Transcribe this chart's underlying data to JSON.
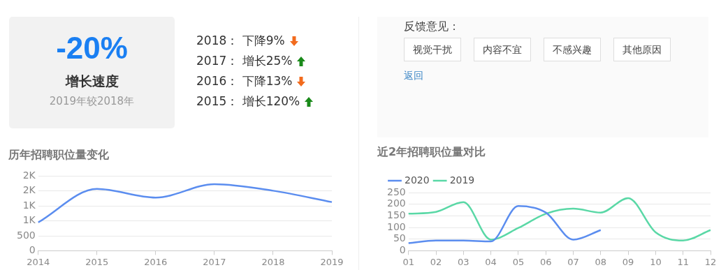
{
  "chart_data": [
    {
      "type": "other",
      "title": "-20%",
      "subtitle": "增长速度",
      "annotations": [
        "2019年较2018年",
        "2018： 下降9%",
        "2017： 增长25%",
        "2016： 下降13%",
        "2015： 增长120%"
      ]
    },
    {
      "type": "other",
      "title": "反馈意见：",
      "annotations": [
        "视觉干扰",
        "内容不宜",
        "不感兴趣",
        "其他原因",
        "返回"
      ]
    },
    {
      "type": "line",
      "title": "历年招聘职位量变化",
      "categories": [
        "2014",
        "2015",
        "2016",
        "2017",
        "2018",
        "2019"
      ],
      "values": [
        950,
        2070,
        1780,
        2230,
        2010,
        1630
      ],
      "color": "#5b8def",
      "ylim": [
        0,
        2500
      ],
      "yticks": [
        0,
        500,
        {
          "value": 1000,
          "label": "1K"
        },
        {
          "value": 1500,
          "label": "1K"
        },
        {
          "value": 2000,
          "label": "2K"
        },
        {
          "value": 2500,
          "label": "2K"
        }
      ],
      "grid": "y",
      "marker": "none",
      "legend": false
    },
    {
      "type": "line",
      "title": "近2年招聘职位量对比",
      "categories": [
        "01",
        "02",
        "03",
        "04",
        "05",
        "06",
        "07",
        "08",
        "09",
        "10",
        "11",
        "12"
      ],
      "series": [
        {
          "name": "2020",
          "color": "#5b8def",
          "values": [
            33,
            44,
            44,
            40,
            192,
            164,
            48,
            89,
            null,
            null,
            null,
            null
          ]
        },
        {
          "name": "2019",
          "color": "#5ad8a6",
          "values": [
            159,
            167,
            209,
            48,
            98,
            159,
            181,
            164,
            226,
            79,
            44,
            89
          ]
        }
      ],
      "ylim": [
        0,
        250
      ],
      "yticks": [
        0,
        50,
        100,
        150,
        200,
        250
      ],
      "grid": "y",
      "marker": "none",
      "legend": "top left"
    }
  ]
}
